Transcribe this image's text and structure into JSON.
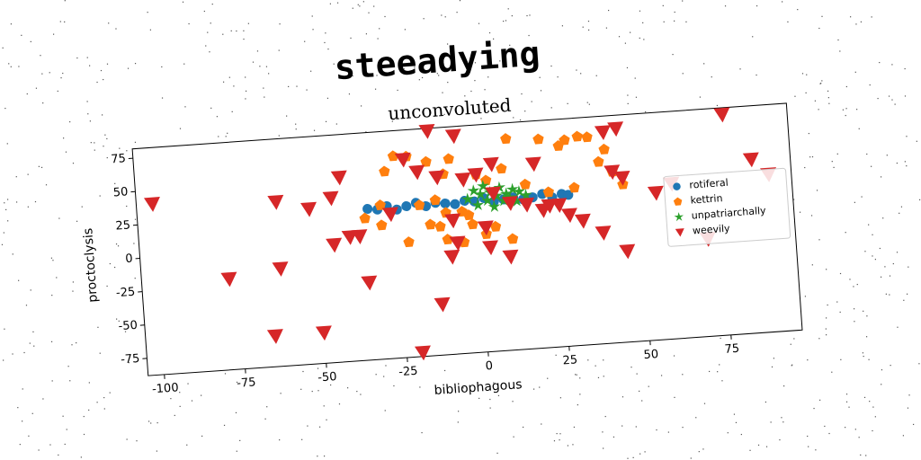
{
  "chart_data": {
    "type": "scatter",
    "title": "steeadying",
    "subtitle": "unconvoluted",
    "x_label": "bibliophagous",
    "y_label": "proctoclysis",
    "xlim": [
      -105,
      97
    ],
    "ylim": [
      -88,
      82
    ],
    "xticks": [
      -100,
      -75,
      -50,
      -25,
      0,
      25,
      50,
      75
    ],
    "yticks": [
      -75,
      -50,
      -25,
      0,
      25,
      50,
      75
    ],
    "legend": "center right",
    "series": [
      {
        "name": "rotiferal",
        "color": "#1f77b4",
        "marker": "circle",
        "x": [
          -34,
          -31,
          -28,
          -25,
          -22,
          -19,
          -16,
          -13,
          -10,
          -7,
          -4,
          -1,
          2,
          5,
          8,
          11,
          14,
          17,
          20,
          23,
          26,
          28
        ],
        "values": [
          25,
          24,
          26,
          23,
          25,
          27,
          24,
          26,
          25,
          24,
          26,
          25,
          27,
          24,
          25,
          26,
          24,
          25,
          27,
          24,
          26,
          25
        ]
      },
      {
        "name": "kettrin",
        "color": "#ff7f0e",
        "marker": "pentagon",
        "x": [
          -25,
          -21,
          -28,
          -15,
          -8,
          -10,
          0,
          3,
          8,
          10,
          20,
          26,
          28,
          32,
          35,
          40,
          38,
          42,
          45,
          30,
          22,
          15,
          -3,
          -5,
          -10,
          -12,
          -15,
          -22,
          -30,
          -35,
          -10,
          -2,
          5,
          2,
          10,
          -5,
          -13,
          -30,
          -18
        ],
        "values": [
          63,
          62,
          52,
          57,
          58,
          47,
          45,
          40,
          48,
          70,
          68,
          62,
          66,
          68,
          67,
          57,
          48,
          40,
          30,
          30,
          28,
          35,
          15,
          18,
          18,
          8,
          10,
          -2,
          12,
          18,
          -2,
          8,
          5,
          0,
          -5,
          -5,
          28,
          27,
          25
        ]
      },
      {
        "name": "unpatriarchally",
        "color": "#2ca02c",
        "marker": "star",
        "x": [
          -3,
          -1,
          0,
          1,
          2,
          3,
          4,
          5,
          6,
          7,
          8,
          9,
          10,
          11,
          12,
          13,
          15
        ],
        "values": [
          27,
          33,
          22,
          30,
          36,
          25,
          31,
          20,
          28,
          34,
          24,
          29,
          26,
          32,
          23,
          30,
          27
        ]
      },
      {
        "name": "weevily",
        "color": "#d62728",
        "marker": "triangle-down",
        "x": [
          -100,
          -78,
          -65,
          -62,
          -62,
          -52,
          -50,
          -45,
          -42,
          -45,
          -40,
          -37,
          -35,
          -27,
          -22,
          -20,
          -18,
          -14,
          -13,
          -12,
          -9,
          -6,
          -8,
          -7,
          -4,
          0,
          2,
          3,
          5,
          5,
          9,
          10,
          15,
          18,
          20,
          22,
          25,
          28,
          32,
          38,
          40,
          44,
          42,
          45,
          45,
          55,
          60,
          70,
          77,
          85,
          90
        ],
        "values": [
          40,
          -20,
          -65,
          35,
          -15,
          28,
          -65,
          35,
          50,
          0,
          5,
          5,
          -30,
          20,
          60,
          -85,
          50,
          80,
          -50,
          45,
          -15,
          75,
          12,
          -5,
          42,
          45,
          5,
          -10,
          52,
          30,
          -18,
          22,
          20,
          50,
          15,
          18,
          18,
          10,
          5,
          -5,
          70,
          72,
          40,
          35,
          -20,
          22,
          28,
          -15,
          77,
          42,
          30
        ]
      }
    ]
  }
}
